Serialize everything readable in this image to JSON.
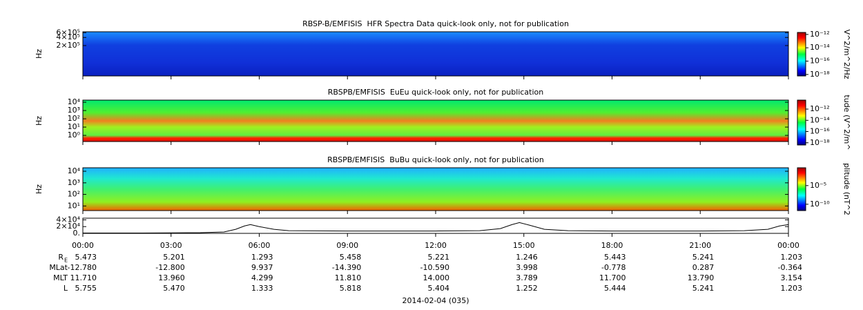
{
  "chart_data": [
    {
      "type": "spectrogram",
      "title": "RBSP-B/EMFISIS  HFR Spectra Data quick-look only, not for publication",
      "ylabel": "Hz",
      "log_y": true,
      "ylim": [
        15000,
        650000
      ],
      "yticks": [
        {
          "value": 200000,
          "label": "2×10⁵"
        },
        {
          "value": 400000,
          "label": "4×10⁵"
        },
        {
          "value": 600000,
          "label": "6×10⁵"
        }
      ],
      "colorbar_label": "V^2/m^2/Hz",
      "clim": [
        6e-19,
        2e-12
      ],
      "cticks": [
        {
          "value": 1e-12,
          "label": "10⁻¹²"
        },
        {
          "value": 1e-14,
          "label": "10⁻¹⁴"
        },
        {
          "value": 1e-16,
          "label": "10⁻¹⁶"
        },
        {
          "value": 1e-18,
          "label": "10⁻¹⁸"
        }
      ]
    },
    {
      "type": "spectrogram",
      "title": "RBSPB/EMFISIS  EuEu quick-look only, not for publication",
      "ylabel": "Hz",
      "log_y": true,
      "ylim": [
        0.18,
        18000
      ],
      "yticks": [
        {
          "value": 1,
          "label": "10⁰"
        },
        {
          "value": 10,
          "label": "10¹"
        },
        {
          "value": 100,
          "label": "10²"
        },
        {
          "value": 1000,
          "label": "10³"
        },
        {
          "value": 10000,
          "label": "10⁴"
        }
      ],
      "colorbar_label": "tude (V^2/m^",
      "clim": [
        4e-19,
        4e-11
      ],
      "cticks": [
        {
          "value": 1e-12,
          "label": "10⁻¹²"
        },
        {
          "value": 1e-14,
          "label": "10⁻¹⁴"
        },
        {
          "value": 1e-16,
          "label": "10⁻¹⁶"
        },
        {
          "value": 1e-18,
          "label": "10⁻¹⁸"
        }
      ]
    },
    {
      "type": "spectrogram",
      "title": "RBSPB/EMFISIS  BuBu quick-look only, not for publication",
      "ylabel": "Hz",
      "log_y": true,
      "ylim": [
        4,
        20000
      ],
      "yticks": [
        {
          "value": 10,
          "label": "10¹"
        },
        {
          "value": 100,
          "label": "10²"
        },
        {
          "value": 1000,
          "label": "10³"
        },
        {
          "value": 10000,
          "label": "10⁴"
        }
      ],
      "colorbar_label": "plitude (nT^2",
      "clim": [
        2e-12,
        0.6
      ],
      "cticks": [
        {
          "value": 1e-05,
          "label": "10⁻⁵"
        },
        {
          "value": 1e-10,
          "label": "10⁻¹⁰"
        }
      ]
    },
    {
      "type": "line",
      "ylim": [
        0,
        45000
      ],
      "yticks": [
        {
          "value": 0,
          "label": "0."
        },
        {
          "value": 20000,
          "label": "2×10⁴"
        },
        {
          "value": 40000,
          "label": "4×10⁴"
        }
      ],
      "x": [
        0,
        2,
        4,
        4.8,
        5.2,
        5.5,
        5.7,
        6,
        6.5,
        7,
        9,
        12,
        13.5,
        14.2,
        14.6,
        14.85,
        15.2,
        15.7,
        16.5,
        18,
        21,
        22.5,
        23.3,
        23.7,
        24
      ],
      "values": [
        1000,
        1000,
        2000,
        4000,
        12000,
        22000,
        26000,
        20000,
        12000,
        8000,
        7000,
        7000,
        8000,
        14000,
        26000,
        32000,
        24000,
        12000,
        8000,
        7000,
        7000,
        8000,
        12000,
        22000,
        26000
      ],
      "color": "#000000"
    }
  ],
  "x_axis": {
    "xlim": [
      0,
      24
    ],
    "xticks": [
      {
        "value": 0,
        "label": "00:00"
      },
      {
        "value": 3,
        "label": "03:00"
      },
      {
        "value": 6,
        "label": "06:00"
      },
      {
        "value": 9,
        "label": "09:00"
      },
      {
        "value": 12,
        "label": "12:00"
      },
      {
        "value": 15,
        "label": "15:00"
      },
      {
        "value": 18,
        "label": "18:00"
      },
      {
        "value": 21,
        "label": "21:00"
      },
      {
        "value": 24,
        "label": "00:00"
      }
    ],
    "date": "2014-02-04 (035)"
  },
  "ephemeris": [
    {
      "label": "R",
      "label_sub": "E",
      "values": [
        "5.473",
        "5.201",
        "1.293",
        "5.458",
        "5.221",
        "1.246",
        "5.443",
        "5.241",
        "1.203"
      ]
    },
    {
      "label": "MLat",
      "values": [
        "-12.780",
        "-12.800",
        "9.937",
        "-14.390",
        "-10.590",
        "3.998",
        "-0.778",
        "0.287",
        "-0.364"
      ]
    },
    {
      "label": "MLT",
      "values": [
        "11.710",
        "13.960",
        "4.299",
        "11.810",
        "14.000",
        "3.789",
        "11.700",
        "13.790",
        "3.154"
      ]
    },
    {
      "label": "L",
      "values": [
        "5.755",
        "5.470",
        "1.333",
        "5.818",
        "5.404",
        "1.252",
        "5.444",
        "5.241",
        "1.203"
      ]
    }
  ]
}
